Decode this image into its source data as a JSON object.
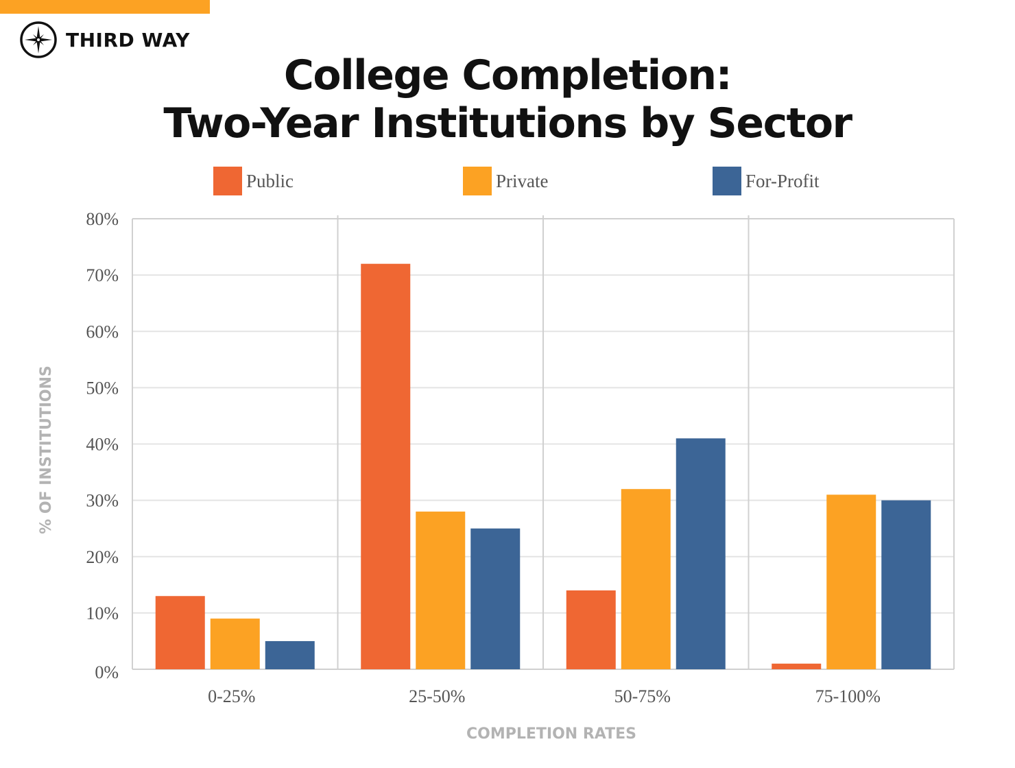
{
  "brand": {
    "name": "THIRD WAY",
    "accent": "#fca223"
  },
  "title": {
    "line1": "College Completion:",
    "line2": "Two-Year Institutions by Sector"
  },
  "chart_data": {
    "type": "bar",
    "title": "College Completion: Two-Year Institutions by Sector",
    "xlabel": "COMPLETION RATES",
    "ylabel": "% OF INSTITUTIONS",
    "categories": [
      "0-25%",
      "25-50%",
      "50-75%",
      "75-100%"
    ],
    "yticks": [
      "0%",
      "10%",
      "20%",
      "30%",
      "40%",
      "50%",
      "60%",
      "70%",
      "80%"
    ],
    "ylim": [
      0,
      80
    ],
    "grid": true,
    "legend": "top",
    "series": [
      {
        "name": "Public",
        "color": "#ef6733",
        "values": [
          13,
          72,
          14,
          1
        ]
      },
      {
        "name": "Private",
        "color": "#fca223",
        "values": [
          9,
          28,
          32,
          31
        ]
      },
      {
        "name": "For-Profit",
        "color": "#3c6596",
        "values": [
          5,
          25,
          41,
          30
        ]
      }
    ]
  }
}
